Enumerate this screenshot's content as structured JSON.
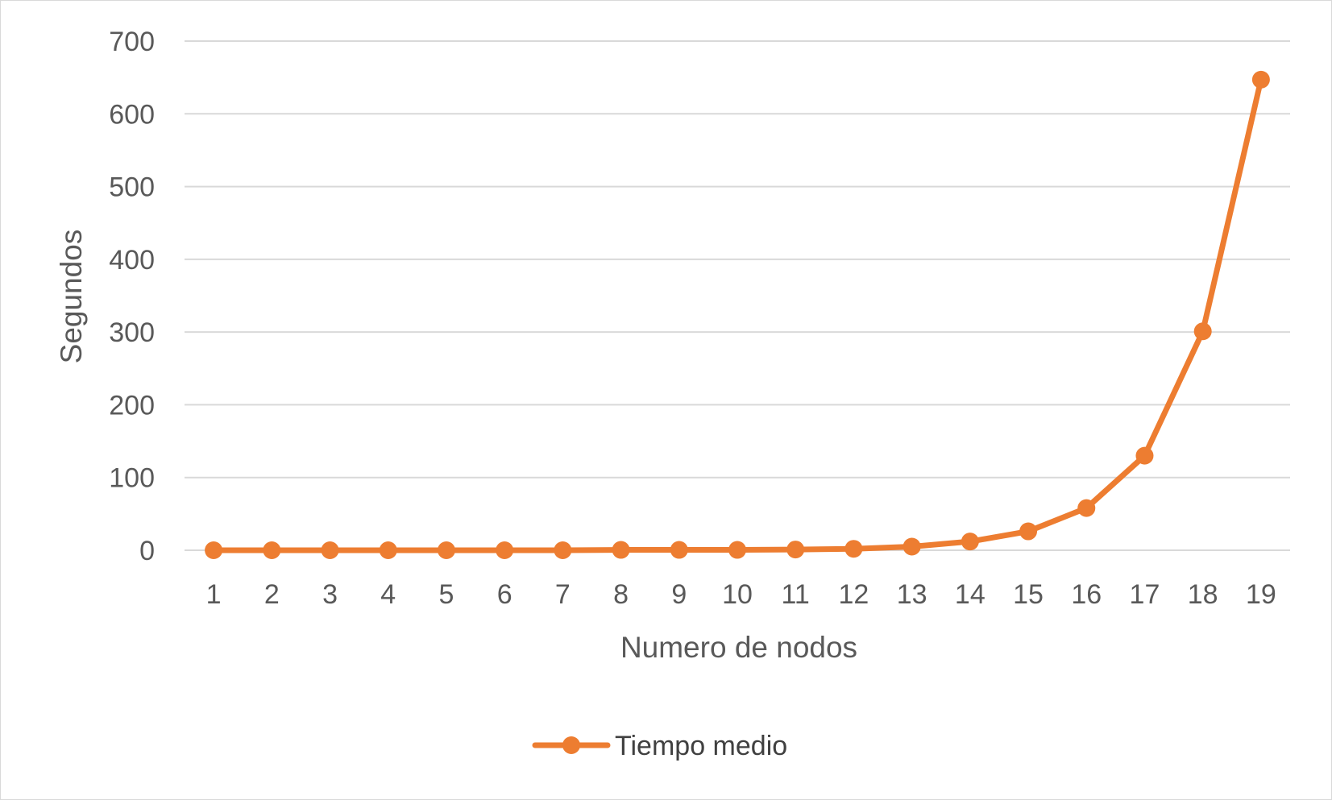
{
  "chart_data": {
    "type": "line",
    "title": "",
    "xlabel": "Numero de nodos",
    "ylabel": "Segundos",
    "categories": [
      "1",
      "2",
      "3",
      "4",
      "5",
      "6",
      "7",
      "8",
      "9",
      "10",
      "11",
      "12",
      "13",
      "14",
      "15",
      "16",
      "17",
      "18",
      "19"
    ],
    "series": [
      {
        "name": "Tiempo medio",
        "color": "#ED7D31",
        "values": [
          0,
          0,
          0,
          0,
          0,
          0,
          0,
          0.5,
          0.5,
          0.5,
          1,
          2,
          5,
          12,
          26,
          58,
          130,
          301,
          647
        ]
      }
    ],
    "ylim": [
      0,
      700
    ],
    "yticks": [
      0,
      100,
      200,
      300,
      400,
      500,
      600,
      700
    ],
    "grid": true,
    "legend_position": "bottom",
    "colors": {
      "gridline": "#d9d9d9",
      "text": "#595959",
      "frame": "#d9d9d9"
    }
  }
}
